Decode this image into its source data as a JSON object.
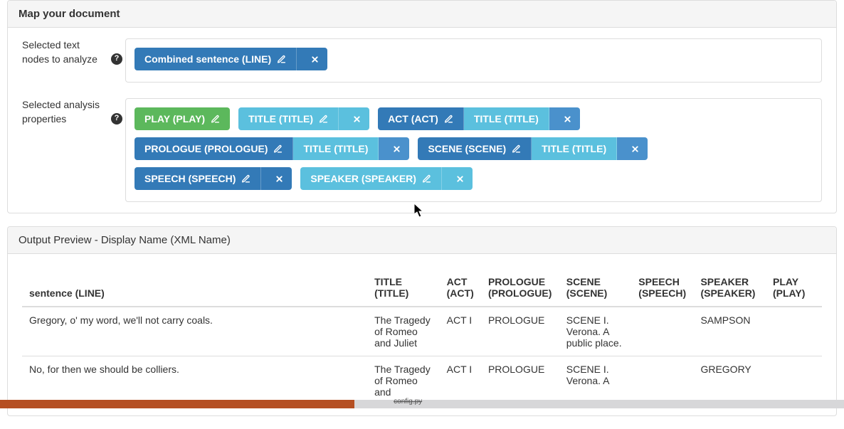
{
  "colors": {
    "green": "#5cb85c",
    "blue": "#337ab7",
    "midblue": "#4a91cc",
    "cyan": "#5bc0de",
    "panel_border": "#dddddd",
    "panel_heading_bg": "#f5f5f5",
    "text": "#333333"
  },
  "map_panel": {
    "title": "Map your document",
    "text_nodes": {
      "label": "Selected text nodes to analyze",
      "tags": [
        {
          "segments": [
            {
              "label": "Combined sentence (LINE)",
              "color": "blue",
              "edit": true,
              "interactable": true
            },
            {
              "close": true,
              "color": "blue",
              "interactable": true
            }
          ]
        }
      ]
    },
    "properties": {
      "label": "Selected analysis properties",
      "tags": [
        {
          "segments": [
            {
              "label": "PLAY (PLAY)",
              "color": "green",
              "edit": true,
              "interactable": true
            }
          ]
        },
        {
          "segments": [
            {
              "label": "TITLE (TITLE)",
              "color": "cyan",
              "edit": true,
              "interactable": true
            },
            {
              "close": true,
              "color": "cyan",
              "interactable": true
            }
          ]
        },
        {
          "segments": [
            {
              "label": "ACT (ACT)",
              "color": "blue",
              "edit": true,
              "interactable": true
            },
            {
              "label": "TITLE (TITLE)",
              "color": "cyan",
              "interactable": true
            },
            {
              "close": true,
              "color": "midblue",
              "interactable": true
            }
          ]
        },
        {
          "segments": [
            {
              "label": "PROLOGUE (PROLOGUE)",
              "color": "blue",
              "edit": true,
              "interactable": true
            },
            {
              "label": "TITLE (TITLE)",
              "color": "cyan",
              "interactable": true
            },
            {
              "close": true,
              "color": "midblue",
              "interactable": true
            }
          ]
        },
        {
          "segments": [
            {
              "label": "SCENE (SCENE)",
              "color": "blue",
              "edit": true,
              "interactable": true
            },
            {
              "label": "TITLE (TITLE)",
              "color": "cyan",
              "interactable": true
            },
            {
              "close": true,
              "color": "midblue",
              "interactable": true
            }
          ]
        },
        {
          "segments": [
            {
              "label": "SPEECH (SPEECH)",
              "color": "blue",
              "edit": true,
              "interactable": true
            },
            {
              "close": true,
              "color": "blue",
              "interactable": true
            }
          ]
        },
        {
          "segments": [
            {
              "label": "SPEAKER (SPEAKER)",
              "color": "cyan",
              "edit": true,
              "interactable": true
            },
            {
              "close": true,
              "color": "cyan",
              "interactable": true
            }
          ]
        }
      ]
    }
  },
  "preview_panel": {
    "title": "Output Preview - Display Name (XML Name)",
    "columns": [
      "sentence (LINE)",
      "TITLE (TITLE)",
      "ACT (ACT)",
      "PROLOGUE (PROLOGUE)",
      "SCENE (SCENE)",
      "SPEECH (SPEECH)",
      "SPEAKER (SPEAKER)",
      "PLAY (PLAY)"
    ],
    "column_widths": [
      "43%",
      "9%",
      "5%",
      "9%",
      "9%",
      "7%",
      "9%",
      "7%"
    ],
    "rows": [
      [
        "Gregory, o' my word, we'll not carry coals.",
        "The Tragedy of Romeo and Juliet",
        "ACT I",
        "PROLOGUE",
        "SCENE I. Verona. A public place.",
        "",
        "SAMPSON",
        ""
      ],
      [
        "No, for then we should be colliers.",
        "The Tragedy of Romeo and",
        "ACT I",
        "PROLOGUE",
        "SCENE I. Verona. A",
        "",
        "GREGORY",
        ""
      ]
    ]
  },
  "bottom_fragment": "config.py"
}
